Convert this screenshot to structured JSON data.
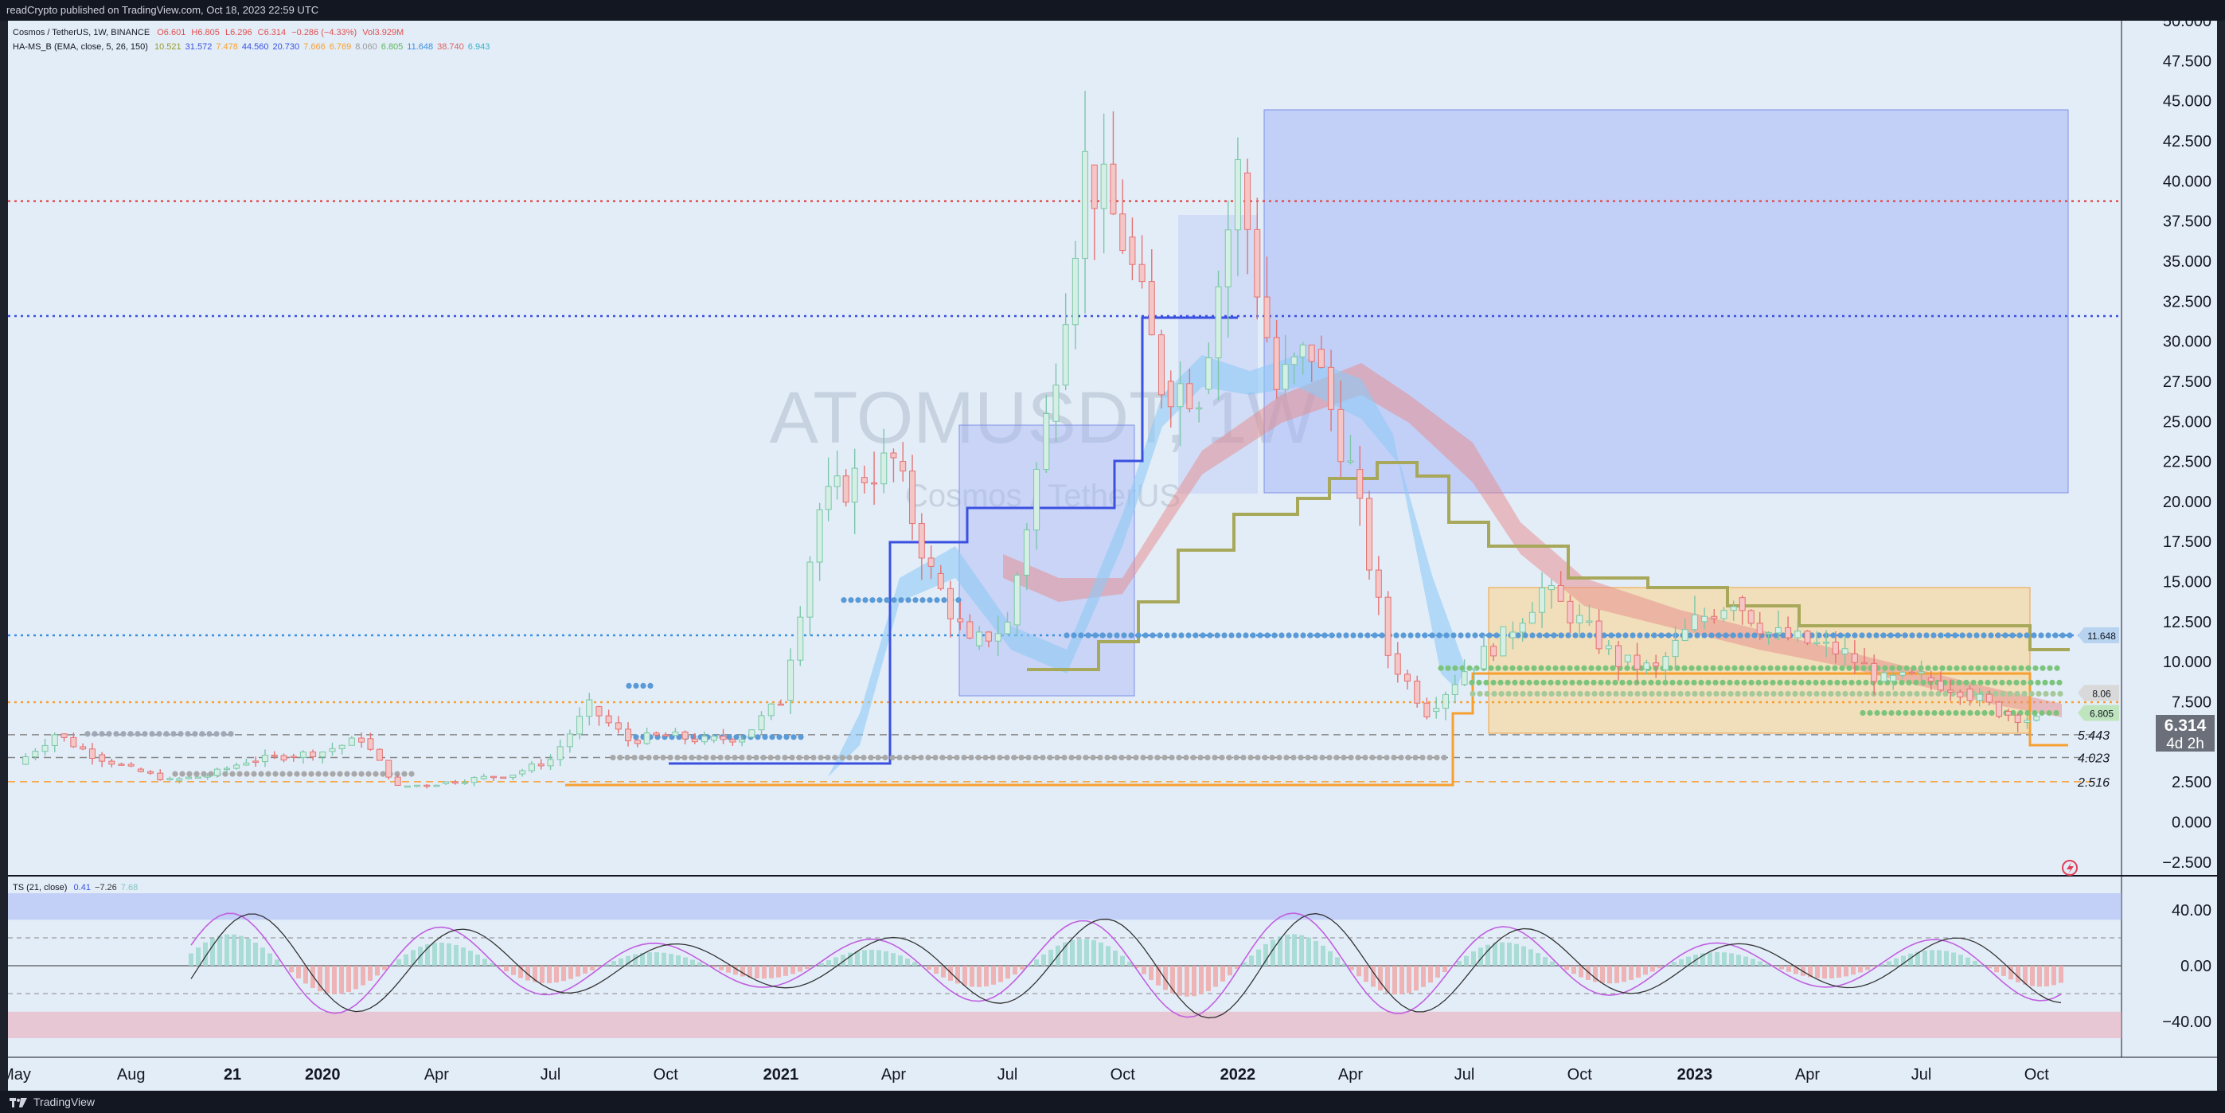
{
  "header": {
    "publish_note": "readCrypto published on TradingView.com, Oct 18, 2023 22:59 UTC"
  },
  "legend": {
    "symbol": "Cosmos / TetherUS, 1W, BINANCE",
    "ohlc": {
      "o": "O6.601",
      "h": "H6.805",
      "l": "L6.296",
      "c": "C6.314",
      "chg": "−0.286 (−4.33%)",
      "vol": "Vol3.929M"
    },
    "indicator_name": "HA-MS_B (EMA, close, 5, 26, 150)",
    "indicator_values": [
      {
        "v": "10.521",
        "color": "#9a9a2a"
      },
      {
        "v": "31.572",
        "color": "#3b52e0"
      },
      {
        "v": "7.478",
        "color": "#f7a030"
      },
      {
        "v": "44.560",
        "color": "#3b52e0"
      },
      {
        "v": "20.730",
        "color": "#3b52e0"
      },
      {
        "v": "7.666",
        "color": "#f7a030"
      },
      {
        "v": "6.769",
        "color": "#f7a030"
      },
      {
        "v": "8.060",
        "color": "#9a9a9a"
      },
      {
        "v": "6.805",
        "color": "#5cb85c"
      },
      {
        "v": "11.648",
        "color": "#3b8fe0"
      },
      {
        "v": "38.740",
        "color": "#e06060"
      },
      {
        "v": "6.943",
        "color": "#3bb0c9"
      }
    ],
    "ts_name": "TS (21, close)",
    "ts_values": [
      {
        "v": "0.41",
        "color": "#3b52e0"
      },
      {
        "v": "−7.26",
        "color": "#333333"
      },
      {
        "v": "7.68",
        "color": "#7fc7c0"
      }
    ]
  },
  "watermark": {
    "title": "ATOMUSDT, 1W",
    "subtitle": "Cosmos / TetherUS"
  },
  "chart_data": {
    "type": "candlestick",
    "y_axis_labels": [
      "50.000",
      "47.500",
      "45.000",
      "42.500",
      "40.000",
      "37.500",
      "35.000",
      "32.500",
      "30.000",
      "27.500",
      "25.000",
      "22.500",
      "20.000",
      "17.500",
      "15.000",
      "12.500",
      "10.000",
      "7.500",
      "5.000",
      "2.500",
      "0.000",
      "−2.500"
    ],
    "y_axis_values": [
      50,
      47.5,
      45,
      42.5,
      40,
      37.5,
      35,
      32.5,
      30,
      27.5,
      25,
      22.5,
      20,
      17.5,
      15,
      12.5,
      10,
      7.5,
      5,
      2.5,
      0,
      -2.5
    ],
    "x_axis_labels": [
      "May",
      "Aug",
      "21",
      "2020",
      "Apr",
      "Jul",
      "Oct",
      "2021",
      "Apr",
      "Jul",
      "Oct",
      "2022",
      "Apr",
      "Jul",
      "Oct",
      "2023",
      "Apr",
      "Jul",
      "Oct"
    ],
    "x_axis_dates": [
      "2019-05",
      "2019-08",
      "2019-10-21",
      "2020-01",
      "2020-04",
      "2020-07",
      "2020-10",
      "2021-01",
      "2021-04",
      "2021-07",
      "2021-10",
      "2022-01",
      "2022-04",
      "2022-07",
      "2022-10",
      "2023-01",
      "2023-04",
      "2023-07",
      "2023-10"
    ],
    "series": [
      {
        "name": "ATOMUSDT close (approx)",
        "points": [
          [
            "2019-05",
            3.6
          ],
          [
            "2019-06",
            5.5
          ],
          [
            "2019-07",
            4.2
          ],
          [
            "2019-08",
            3.3
          ],
          [
            "2019-09",
            2.6
          ],
          [
            "2019-10",
            2.9
          ],
          [
            "2019-11",
            3.8
          ],
          [
            "2019-12",
            4.1
          ],
          [
            "2020-01",
            4.4
          ],
          [
            "2020-02",
            5.2
          ],
          [
            "2020-03",
            2.2
          ],
          [
            "2020-04",
            2.4
          ],
          [
            "2020-05",
            2.7
          ],
          [
            "2020-06",
            3.0
          ],
          [
            "2020-07",
            3.9
          ],
          [
            "2020-08",
            7.2
          ],
          [
            "2020-09",
            5.1
          ],
          [
            "2020-10",
            5.4
          ],
          [
            "2020-11",
            5.1
          ],
          [
            "2020-12",
            5.3
          ],
          [
            "2021-01",
            7.6
          ],
          [
            "2021-02",
            19.5
          ],
          [
            "2021-03",
            21.5
          ],
          [
            "2021-04",
            22.5
          ],
          [
            "2021-05",
            15.5
          ],
          [
            "2021-06",
            11.0
          ],
          [
            "2021-07",
            12.3
          ],
          [
            "2021-08",
            25.0
          ],
          [
            "2021-09",
            41.0
          ],
          [
            "2021-10",
            36.5
          ],
          [
            "2021-11",
            27.5
          ],
          [
            "2021-12",
            27.0
          ],
          [
            "2022-01",
            40.5
          ],
          [
            "2022-02",
            27.0
          ],
          [
            "2022-03",
            29.5
          ],
          [
            "2022-04",
            22.0
          ],
          [
            "2022-05",
            10.5
          ],
          [
            "2022-06",
            6.9
          ],
          [
            "2022-07",
            9.5
          ],
          [
            "2022-08",
            11.5
          ],
          [
            "2022-09",
            14.5
          ],
          [
            "2022-10",
            12.5
          ],
          [
            "2022-11",
            10.0
          ],
          [
            "2022-12",
            9.5
          ],
          [
            "2023-01",
            12.5
          ],
          [
            "2023-02",
            14.0
          ],
          [
            "2023-03",
            11.8
          ],
          [
            "2023-04",
            11.2
          ],
          [
            "2023-05",
            10.5
          ],
          [
            "2023-06",
            8.8
          ],
          [
            "2023-07",
            9.0
          ],
          [
            "2023-08",
            8.3
          ],
          [
            "2023-09",
            6.9
          ],
          [
            "2023-10",
            6.314
          ]
        ]
      }
    ],
    "horizontal_levels": [
      {
        "value": 38.74,
        "color": "#e05050",
        "style": "dotted"
      },
      {
        "value": 31.572,
        "color": "#3a50e0",
        "style": "dotted"
      },
      {
        "value": 11.648,
        "color": "#3b8fe0",
        "style": "dotted"
      },
      {
        "value": 7.478,
        "color": "#f7a030",
        "style": "dotted"
      },
      {
        "value": 5.443,
        "color": "#888888",
        "style": "dashed",
        "label": "5.443"
      },
      {
        "value": 4.023,
        "color": "#888888",
        "style": "dashed",
        "label": "4.023"
      },
      {
        "value": 2.516,
        "color": "#f7a030",
        "style": "dashed",
        "label": "2.516"
      }
    ],
    "right_tags": [
      {
        "value": 11.648,
        "label": "11.648",
        "color": "#b7d3ef"
      },
      {
        "value": 8.06,
        "label": "8.06",
        "color": "#d9d9d9"
      },
      {
        "value": 6.805,
        "label": "6.805",
        "color": "#bfe5bf"
      }
    ],
    "current_price": {
      "value": 6.314,
      "label": "6.314",
      "countdown": "4d 2h"
    },
    "oscillator": {
      "name": "TS (21, close)",
      "y_axis_labels": [
        "40.00",
        "0.00",
        "−40.00"
      ],
      "y_axis_values": [
        40,
        0,
        -40
      ]
    },
    "grid": false
  },
  "footer": {
    "brand": "TradingView"
  }
}
